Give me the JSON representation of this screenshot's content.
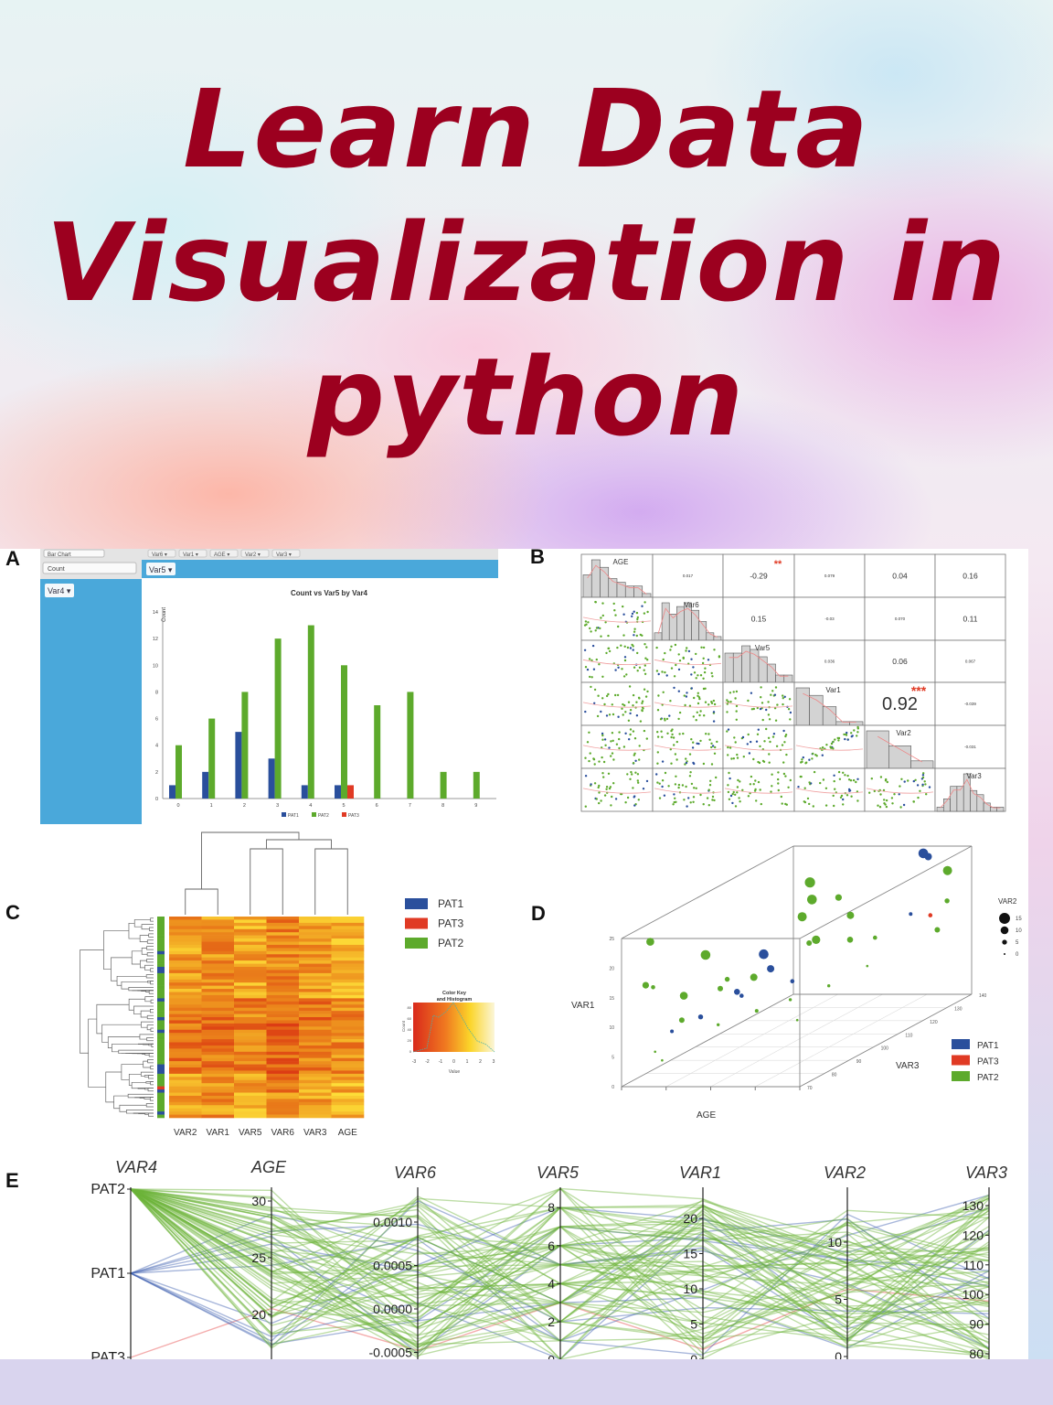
{
  "title": {
    "line1": "Learn Data",
    "line2": "Visualization in",
    "line3": "python"
  },
  "colors": {
    "title": "#9c001f",
    "PAT1": "#2a4f9c",
    "PAT2": "#5daa2c",
    "PAT3": "#e03a24",
    "panel_blue": "#4aa8da"
  },
  "panels": {
    "A": {
      "label": "A",
      "toolbar": {
        "chart_type": "Bar Chart",
        "var_buttons": [
          "Var6 ▾",
          "Var1 ▾",
          "AGE ▾",
          "Var2 ▾",
          "Var3 ▾"
        ],
        "measure": "Count",
        "x_chip": "Var5 ▾",
        "group_chip": "Var4 ▾"
      }
    },
    "B": {
      "label": "B"
    },
    "C": {
      "label": "C"
    },
    "D": {
      "label": "D"
    },
    "E": {
      "label": "E"
    }
  },
  "chart_data": [
    {
      "panel": "A",
      "type": "bar",
      "title": "Count vs Var5 by Var4",
      "ylabel": "Count",
      "xlabel": "",
      "categories": [
        "0",
        "1",
        "2",
        "3",
        "4",
        "5",
        "6",
        "7",
        "8",
        "9"
      ],
      "ylim": [
        0,
        14
      ],
      "yticks": [
        0,
        2,
        4,
        6,
        8,
        10,
        12,
        14
      ],
      "series": [
        {
          "name": "PAT1",
          "color": "#2a4f9c",
          "values": [
            1,
            2,
            5,
            3,
            1,
            1,
            0,
            0,
            0,
            0
          ]
        },
        {
          "name": "PAT2",
          "color": "#5daa2c",
          "values": [
            4,
            6,
            8,
            12,
            13,
            10,
            7,
            8,
            2,
            2
          ]
        },
        {
          "name": "PAT3",
          "color": "#e03a24",
          "values": [
            0,
            0,
            0,
            0,
            0,
            1,
            0,
            0,
            0,
            0
          ]
        }
      ],
      "legend": "bottom"
    },
    {
      "panel": "B",
      "type": "scatter",
      "variables": [
        "AGE",
        "Var6",
        "Var5",
        "Var1",
        "Var2",
        "Var3"
      ],
      "correlations": [
        {
          "row": 0,
          "col": 1,
          "text": "0.017",
          "stars": ""
        },
        {
          "row": 0,
          "col": 2,
          "text": "-0.29",
          "stars": "**"
        },
        {
          "row": 0,
          "col": 3,
          "text": "0.079",
          "stars": ""
        },
        {
          "row": 0,
          "col": 4,
          "text": "0.04",
          "stars": ""
        },
        {
          "row": 0,
          "col": 5,
          "text": "0.16",
          "stars": ""
        },
        {
          "row": 1,
          "col": 2,
          "text": "0.15",
          "stars": ""
        },
        {
          "row": 1,
          "col": 3,
          "text": "-0.03",
          "stars": ""
        },
        {
          "row": 1,
          "col": 4,
          "text": "0.070",
          "stars": ""
        },
        {
          "row": 1,
          "col": 5,
          "text": "0.11",
          "stars": ""
        },
        {
          "row": 2,
          "col": 3,
          "text": "0.036",
          "stars": ""
        },
        {
          "row": 2,
          "col": 4,
          "text": "0.06",
          "stars": ""
        },
        {
          "row": 2,
          "col": 5,
          "text": "0.067",
          "stars": ""
        },
        {
          "row": 3,
          "col": 4,
          "text": "0.92",
          "stars": "***"
        },
        {
          "row": 3,
          "col": 5,
          "text": "-0.039",
          "stars": ""
        },
        {
          "row": 4,
          "col": 5,
          "text": "-0.031",
          "stars": ""
        }
      ],
      "histogram_bins": [
        [
          6,
          10,
          8,
          5,
          4,
          3,
          3,
          1
        ],
        [
          2,
          10,
          7,
          9,
          10,
          8,
          5,
          2,
          1
        ],
        [
          8,
          8,
          10,
          9,
          7,
          5,
          2,
          2
        ],
        [
          10,
          8,
          5,
          1,
          1
        ],
        [
          10,
          6,
          2
        ],
        [
          1,
          3,
          6,
          6,
          9,
          5,
          4,
          2,
          1,
          1
        ]
      ]
    },
    {
      "panel": "C",
      "type": "heatmap",
      "columns": [
        "VAR2",
        "VAR1",
        "VAR5",
        "VAR6",
        "VAR3",
        "AGE"
      ],
      "legend": [
        {
          "name": "PAT1",
          "color": "#2a4f9c"
        },
        {
          "name": "PAT3",
          "color": "#e03a24"
        },
        {
          "name": "PAT2",
          "color": "#5daa2c"
        }
      ],
      "color_key": {
        "title_line1": "Color Key",
        "title_line2": "and Histogram",
        "xlabel": "Value",
        "ylabel": "Count",
        "xticks": [
          "-3",
          "-2",
          "-1",
          "0",
          "1",
          "2",
          "3"
        ],
        "yticks": [
          "0",
          "20",
          "40",
          "60",
          "80"
        ]
      }
    },
    {
      "panel": "D",
      "type": "scatter",
      "xlabel": "AGE",
      "ylabel": "VAR1",
      "zlabel": "VAR3",
      "size_label": "VAR2",
      "ylim": [
        0,
        25
      ],
      "yticks": [
        "0",
        "5",
        "10",
        "15",
        "20",
        "25"
      ],
      "zlim": [
        70,
        140
      ],
      "zticks": [
        "70",
        "80",
        "90",
        "100",
        "110",
        "120",
        "130",
        "140"
      ],
      "xlim": [
        17,
        32
      ],
      "size_legend": [
        "15",
        "10",
        "5",
        "0"
      ],
      "legend": [
        {
          "name": "PAT1",
          "color": "#2a4f9c"
        },
        {
          "name": "PAT3",
          "color": "#e03a24"
        },
        {
          "name": "PAT2",
          "color": "#5daa2c"
        }
      ],
      "points": [
        [
          18,
          75,
          16,
          8,
          "PAT2"
        ],
        [
          18,
          78,
          15,
          4,
          "PAT2"
        ],
        [
          19,
          72,
          24,
          10,
          "PAT2"
        ],
        [
          22,
          80,
          20,
          13,
          "PAT2"
        ],
        [
          21,
          76,
          14,
          10,
          "PAT2"
        ],
        [
          24,
          90,
          14,
          9,
          "PAT2"
        ],
        [
          23,
          84,
          15,
          5,
          "PAT2"
        ],
        [
          26,
          100,
          22,
          12,
          "PAT2"
        ],
        [
          26,
          104,
          24,
          13,
          "PAT2"
        ],
        [
          25,
          108,
          26,
          14,
          "PAT2"
        ],
        [
          27,
          110,
          23,
          8,
          "PAT2"
        ],
        [
          28,
          96,
          19,
          11,
          "PAT2"
        ],
        [
          27,
          98,
          18,
          6,
          "PAT2"
        ],
        [
          24,
          94,
          17,
          13,
          "PAT1"
        ],
        [
          25,
          92,
          15,
          9,
          "PAT1"
        ],
        [
          23,
          88,
          12,
          7,
          "PAT1"
        ],
        [
          24,
          85,
          12,
          4,
          "PAT1"
        ],
        [
          22,
          78,
          10,
          5,
          "PAT1"
        ],
        [
          20,
          76,
          8,
          3,
          "PAT1"
        ],
        [
          26,
          96,
          12,
          4,
          "PAT1"
        ],
        [
          30,
          130,
          26,
          13,
          "PAT1"
        ],
        [
          30,
          132,
          25,
          9,
          "PAT1"
        ],
        [
          31,
          120,
          18,
          3,
          "PAT1"
        ],
        [
          31,
          128,
          16,
          4,
          "PAT3"
        ],
        [
          31,
          135,
          22,
          12,
          "PAT2"
        ],
        [
          32,
          130,
          18,
          5,
          "PAT2"
        ],
        [
          32,
          126,
          14,
          6,
          "PAT2"
        ],
        [
          29,
          105,
          17,
          7,
          "PAT2"
        ],
        [
          28,
          110,
          20,
          9,
          "PAT2"
        ],
        [
          22,
          86,
          13,
          6,
          "PAT2"
        ],
        [
          20,
          80,
          9,
          6,
          "PAT2"
        ],
        [
          21,
          90,
          6,
          2,
          "PAT2"
        ],
        [
          23,
          96,
          7,
          3,
          "PAT2"
        ],
        [
          25,
          100,
          8,
          2,
          "PAT2"
        ],
        [
          27,
          106,
          9,
          2,
          "PAT2"
        ],
        [
          29,
          112,
          11,
          1,
          "PAT2"
        ],
        [
          19,
          74,
          5,
          1,
          "PAT2"
        ],
        [
          20,
          72,
          4,
          1,
          "PAT2"
        ],
        [
          26,
          98,
          5,
          1,
          "PAT2"
        ],
        [
          28,
          120,
          14,
          4,
          "PAT2"
        ]
      ]
    },
    {
      "panel": "E",
      "type": "line",
      "subtype": "parallel-coordinates",
      "axes": [
        {
          "name": "VAR4",
          "ticks": [
            "PAT2",
            "PAT1",
            "PAT3"
          ]
        },
        {
          "name": "AGE",
          "ticks": [
            "30",
            "25",
            "20"
          ],
          "range": [
            17,
            31
          ]
        },
        {
          "name": "VAR6",
          "ticks": [
            "0.0010",
            "0.0005",
            "0.0000",
            "-0.0005"
          ],
          "range": [
            -0.0006,
            0.0013
          ]
        },
        {
          "name": "VAR5",
          "ticks": [
            "8",
            "6",
            "4",
            "2",
            "0"
          ],
          "range": [
            0,
            9
          ]
        },
        {
          "name": "VAR1",
          "ticks": [
            "20",
            "15",
            "10",
            "5",
            "0"
          ],
          "range": [
            0,
            23
          ]
        },
        {
          "name": "VAR2",
          "ticks": [
            "10",
            "5",
            "0"
          ],
          "range": [
            0,
            13
          ]
        },
        {
          "name": "VAR3",
          "ticks": [
            "130",
            "120",
            "110",
            "100",
            "90",
            "80"
          ],
          "range": [
            77,
            135
          ]
        }
      ],
      "groups": [
        {
          "name": "PAT1",
          "color": "#3d5fb0"
        },
        {
          "name": "PAT2",
          "color": "#6cb33a"
        },
        {
          "name": "PAT3",
          "color": "#f08a8a"
        }
      ]
    }
  ]
}
